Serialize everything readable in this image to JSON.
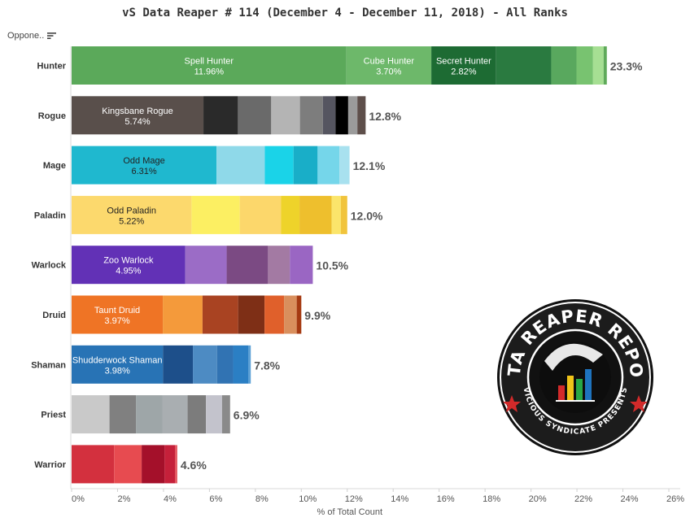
{
  "title": "vS Data Reaper # 114 (December 4 - December 11, 2018) - All Ranks",
  "header": {
    "column_label": "Oppone..",
    "sort_icon": "sort-icon"
  },
  "logo": {
    "text_top": "DATA REAPER REPORT",
    "text_bottom": "VICIOUS SYNDICATE PRESENTS"
  },
  "chart_data": {
    "type": "bar",
    "orientation": "horizontal",
    "stacked": true,
    "title": "vS Data Reaper # 114 (December 4 - December 11, 2018) - All Ranks",
    "xlabel": "% of Total Count",
    "ylabel": "",
    "xlim": [
      0,
      26
    ],
    "xticks": [
      0,
      2,
      4,
      6,
      8,
      10,
      12,
      14,
      16,
      18,
      20,
      22,
      24,
      26
    ],
    "xtick_suffix": "%",
    "grid": false,
    "categories": [
      {
        "name": "Hunter",
        "total_label": "23.3%",
        "segments": [
          {
            "name": "Spell Hunter",
            "value": 11.96,
            "label": "11.96%",
            "color": "#5ba95a"
          },
          {
            "name": "Cube Hunter",
            "value": 3.7,
            "label": "3.70%",
            "color": "#6db86a"
          },
          {
            "name": "Secret Hunter",
            "value": 2.82,
            "label": "2.82%",
            "color": "#1d6b33"
          },
          {
            "name": "",
            "value": 2.4,
            "color": "#2a7a40"
          },
          {
            "name": "",
            "value": 1.1,
            "color": "#59a85e"
          },
          {
            "name": "",
            "value": 0.72,
            "color": "#78c370"
          },
          {
            "name": "",
            "value": 0.46,
            "color": "#a6df93"
          },
          {
            "name": "",
            "value": 0.14,
            "color": "#5faa5a"
          }
        ]
      },
      {
        "name": "Rogue",
        "total_label": "12.8%",
        "segments": [
          {
            "name": "Kingsbane Rogue",
            "value": 5.74,
            "label": "5.74%",
            "color": "#594f4b"
          },
          {
            "name": "",
            "value": 1.5,
            "color": "#2a2a2a"
          },
          {
            "name": "",
            "value": 1.45,
            "color": "#6a6a6a"
          },
          {
            "name": "",
            "value": 1.25,
            "color": "#b4b4b4"
          },
          {
            "name": "",
            "value": 1.0,
            "color": "#7d7d7d"
          },
          {
            "name": "",
            "value": 0.55,
            "color": "#555560"
          },
          {
            "name": "",
            "value": 0.55,
            "color": "#000000"
          },
          {
            "name": "",
            "value": 0.4,
            "color": "#9b9b9b"
          },
          {
            "name": "",
            "value": 0.36,
            "color": "#5e4f4b"
          }
        ]
      },
      {
        "name": "Mage",
        "total_label": "12.1%",
        "segments": [
          {
            "name": "Odd Mage",
            "value": 6.31,
            "label": "6.31%",
            "color": "#1fb8cf"
          },
          {
            "name": "",
            "value": 2.1,
            "color": "#8fd9e9"
          },
          {
            "name": "",
            "value": 1.25,
            "color": "#1ad3e8"
          },
          {
            "name": "",
            "value": 1.05,
            "color": "#19aec8"
          },
          {
            "name": "",
            "value": 0.95,
            "color": "#75d6ea"
          },
          {
            "name": "",
            "value": 0.44,
            "color": "#a8e1ef"
          }
        ]
      },
      {
        "name": "Paladin",
        "total_label": "12.0%",
        "segments": [
          {
            "name": "Odd Paladin",
            "value": 5.22,
            "label": "5.22%",
            "color": "#fcd96d"
          },
          {
            "name": "",
            "value": 2.1,
            "color": "#fcef62"
          },
          {
            "name": "",
            "value": 1.8,
            "color": "#fcd76b"
          },
          {
            "name": "",
            "value": 0.8,
            "color": "#eed32a"
          },
          {
            "name": "",
            "value": 1.4,
            "color": "#eebf2d"
          },
          {
            "name": "",
            "value": 0.4,
            "color": "#fbe56b"
          },
          {
            "name": "",
            "value": 0.28,
            "color": "#f1c43c"
          }
        ]
      },
      {
        "name": "Warlock",
        "total_label": "10.5%",
        "segments": [
          {
            "name": "Zoo Warlock",
            "value": 4.95,
            "label": "4.95%",
            "color": "#6231b6"
          },
          {
            "name": "",
            "value": 1.8,
            "color": "#9b6cc6"
          },
          {
            "name": "",
            "value": 1.8,
            "color": "#7b4a83"
          },
          {
            "name": "",
            "value": 0.95,
            "color": "#a37aa3"
          },
          {
            "name": "",
            "value": 1.0,
            "color": "#9a66c3"
          }
        ]
      },
      {
        "name": "Druid",
        "total_label": "9.9%",
        "segments": [
          {
            "name": "Taunt Druid",
            "value": 3.97,
            "label": "3.97%",
            "color": "#ef7425"
          },
          {
            "name": "",
            "value": 1.73,
            "color": "#f49a3b"
          },
          {
            "name": "",
            "value": 1.55,
            "color": "#a94322"
          },
          {
            "name": "",
            "value": 1.15,
            "color": "#7e2f16"
          },
          {
            "name": "",
            "value": 0.85,
            "color": "#e0602b"
          },
          {
            "name": "",
            "value": 0.55,
            "color": "#d98f5d"
          },
          {
            "name": "",
            "value": 0.2,
            "color": "#a53a12"
          }
        ]
      },
      {
        "name": "Shaman",
        "total_label": "7.8%",
        "segments": [
          {
            "name": "Shudderwock Shaman",
            "value": 3.98,
            "label": "3.98%",
            "color": "#2873b5"
          },
          {
            "name": "",
            "value": 1.3,
            "color": "#1d4f8a"
          },
          {
            "name": "",
            "value": 1.05,
            "color": "#4d8bc3"
          },
          {
            "name": "",
            "value": 0.7,
            "color": "#3173b3"
          },
          {
            "name": "",
            "value": 0.67,
            "color": "#2b7fc4"
          },
          {
            "name": "",
            "value": 0.1,
            "color": "#5da1d6"
          }
        ]
      },
      {
        "name": "Priest",
        "total_label": "6.9%",
        "segments": [
          {
            "name": "",
            "value": 1.65,
            "color": "#c9c9c9"
          },
          {
            "name": "",
            "value": 1.15,
            "color": "#808080"
          },
          {
            "name": "",
            "value": 1.15,
            "color": "#9ea6a8"
          },
          {
            "name": "",
            "value": 1.1,
            "color": "#a9aeb1"
          },
          {
            "name": "",
            "value": 0.8,
            "color": "#7c7c7c"
          },
          {
            "name": "",
            "value": 0.7,
            "color": "#c3c3cc"
          },
          {
            "name": "",
            "value": 0.35,
            "color": "#8a8a8a"
          }
        ]
      },
      {
        "name": "Warrior",
        "total_label": "4.6%",
        "segments": [
          {
            "name": "",
            "value": 1.85,
            "color": "#d3303e"
          },
          {
            "name": "",
            "value": 1.2,
            "color": "#e74b50"
          },
          {
            "name": "",
            "value": 1.0,
            "color": "#a4102a"
          },
          {
            "name": "",
            "value": 0.45,
            "color": "#c5203a"
          },
          {
            "name": "",
            "value": 0.1,
            "color": "#e3555e"
          }
        ]
      }
    ]
  }
}
